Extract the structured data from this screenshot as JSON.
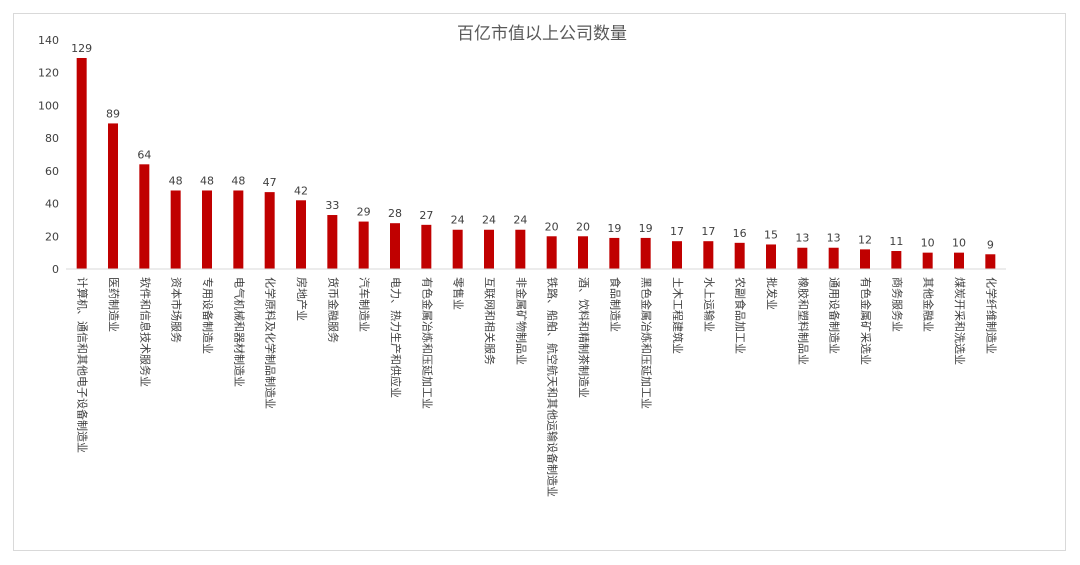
{
  "chart_data": {
    "type": "bar",
    "title": "百亿市值以上公司数量",
    "xlabel": "",
    "ylabel": "",
    "ylim": [
      0,
      140
    ],
    "yticks": [
      0,
      20,
      40,
      60,
      80,
      100,
      120,
      140
    ],
    "grid": false,
    "legend": "none",
    "bar_color": "#c00000",
    "categories": [
      "计算机、通信和其他电子设备制造业",
      "医药制造业",
      "软件和信息技术服务业",
      "资本市场服务",
      "专用设备制造业",
      "电气机械和器材制造业",
      "化学原料及化学制品制造业",
      "房地产业",
      "货币金融服务",
      "汽车制造业",
      "电力、热力生产和供应业",
      "有色金属冶炼和压延加工业",
      "零售业",
      "互联网和相关服务",
      "非金属矿物制品业",
      "铁路、船舶、航空航天和其他运输设备制造业",
      "酒、饮料和精制茶制造业",
      "食品制造业",
      "黑色金属冶炼和压延加工业",
      "土木工程建筑业",
      "水上运输业",
      "农副食品加工业",
      "批发业",
      "橡胶和塑料制品业",
      "通用设备制造业",
      "有色金属矿采选业",
      "商务服务业",
      "其他金融业",
      "煤炭开采和洗选业",
      "化学纤维制造业"
    ],
    "values": [
      129,
      89,
      64,
      48,
      48,
      48,
      47,
      42,
      33,
      29,
      28,
      27,
      24,
      24,
      24,
      20,
      20,
      19,
      19,
      17,
      17,
      16,
      15,
      13,
      13,
      12,
      11,
      10,
      10,
      9
    ]
  }
}
